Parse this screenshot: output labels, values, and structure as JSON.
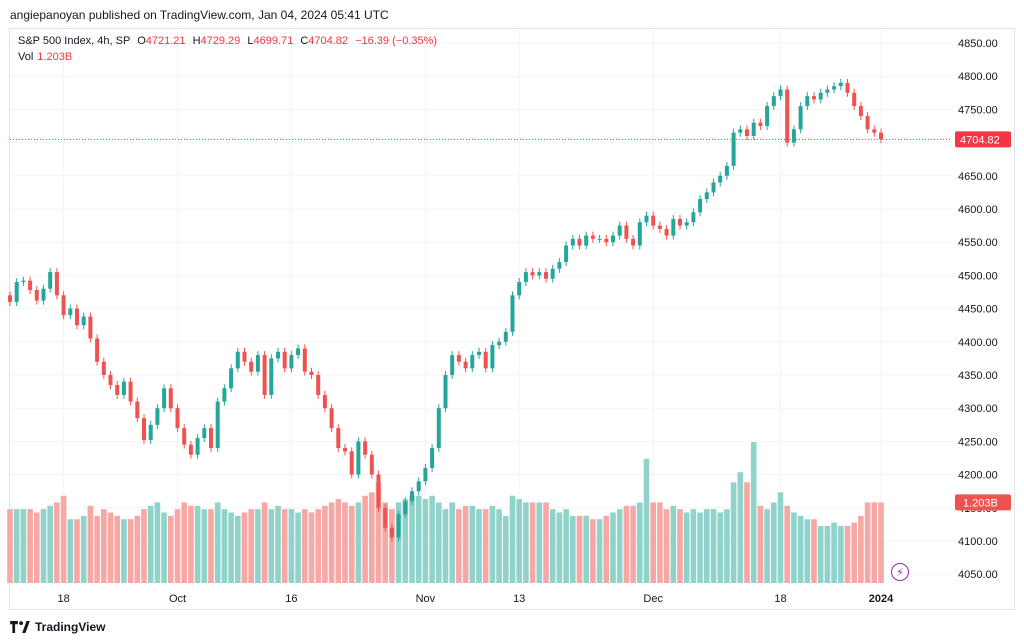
{
  "header": {
    "publisher": "angiepanoyan published on TradingView.com, Jan 04, 2024 05:41 UTC"
  },
  "legend": {
    "symbol": "S&P 500 Index, 4h, SP",
    "o_label": "O",
    "o": "4721.21",
    "h_label": "H",
    "h": "4729.29",
    "l_label": "L",
    "l": "4699.71",
    "c_label": "C",
    "c": "4704.82",
    "change": "−16.39 (−0.35%)",
    "vol_label": "Vol",
    "vol": "1.203B"
  },
  "footer": {
    "brand": "TradingView"
  },
  "colors": {
    "up": "#26a69a",
    "down": "#ef5350",
    "vol_up": "#8fd3cb",
    "vol_down": "#f7a8a5",
    "last_price": "#f23645"
  },
  "chart_data": {
    "type": "candlestick",
    "title": "S&P 500 Index, 4h, SP",
    "ylim": [
      4040,
      4870
    ],
    "y_ticks": [
      "4850.00",
      "4800.00",
      "4750.00",
      "4700.00",
      "4650.00",
      "4600.00",
      "4550.00",
      "4500.00",
      "4450.00",
      "4400.00",
      "4350.00",
      "4300.00",
      "4250.00",
      "4200.00",
      "4150.00",
      "4100.00",
      "4050.00"
    ],
    "x_tick_labels": [
      "18",
      "Oct",
      "16",
      "Nov",
      "13",
      "Dec",
      "18",
      "2024"
    ],
    "x_tick_bar_index": [
      8,
      25,
      42,
      62,
      76,
      96,
      115,
      130
    ],
    "last_price_label": "4704.82",
    "last_volume_label": "1.203B",
    "volume_max_b": 2.1,
    "closes": [
      4460,
      4490,
      4492,
      4478,
      4462,
      4480,
      4505,
      4470,
      4440,
      4450,
      4425,
      4438,
      4405,
      4370,
      4350,
      4335,
      4320,
      4340,
      4310,
      4285,
      4252,
      4275,
      4300,
      4330,
      4300,
      4270,
      4245,
      4230,
      4255,
      4270,
      4240,
      4310,
      4330,
      4360,
      4385,
      4370,
      4355,
      4380,
      4320,
      4375,
      4385,
      4360,
      4380,
      4390,
      4355,
      4350,
      4320,
      4300,
      4270,
      4240,
      4235,
      4200,
      4250,
      4230,
      4200,
      4150,
      4120,
      4105,
      4140,
      4160,
      4175,
      4190,
      4210,
      4240,
      4300,
      4350,
      4380,
      4370,
      4360,
      4380,
      4385,
      4360,
      4395,
      4400,
      4415,
      4470,
      4490,
      4505,
      4500,
      4505,
      4495,
      4510,
      4520,
      4545,
      4555,
      4545,
      4560,
      4555,
      4555,
      4550,
      4560,
      4575,
      4555,
      4545,
      4580,
      4590,
      4575,
      4570,
      4560,
      4585,
      4575,
      4580,
      4595,
      4615,
      4625,
      4640,
      4650,
      4665,
      4715,
      4720,
      4710,
      4730,
      4725,
      4755,
      4770,
      4780,
      4700,
      4720,
      4755,
      4770,
      4765,
      4775,
      4780,
      4785,
      4790,
      4775,
      4755,
      4740,
      4720,
      4715,
      4705
    ],
    "volumes_b": [
      1.1,
      1.1,
      1.1,
      1.1,
      1.05,
      1.1,
      1.15,
      1.2,
      1.3,
      0.95,
      0.95,
      1.0,
      1.15,
      1.0,
      1.1,
      1.05,
      1.0,
      0.95,
      0.95,
      1.0,
      1.1,
      1.15,
      1.2,
      1.05,
      1.0,
      1.1,
      1.2,
      1.15,
      1.15,
      1.1,
      1.1,
      1.2,
      1.1,
      1.05,
      1.0,
      1.05,
      1.1,
      1.1,
      1.2,
      1.1,
      1.15,
      1.1,
      1.1,
      1.05,
      1.1,
      1.05,
      1.1,
      1.15,
      1.2,
      1.25,
      1.2,
      1.15,
      1.2,
      1.3,
      1.35,
      1.5,
      1.2,
      1.1,
      1.2,
      1.25,
      1.3,
      1.3,
      1.25,
      1.3,
      1.2,
      1.1,
      1.2,
      1.1,
      1.15,
      1.15,
      1.1,
      1.1,
      1.15,
      1.1,
      1.0,
      1.3,
      1.25,
      1.2,
      1.2,
      1.2,
      1.2,
      1.1,
      1.05,
      1.1,
      1.0,
      1.0,
      1.0,
      0.95,
      0.95,
      1.0,
      1.05,
      1.1,
      1.15,
      1.15,
      1.2,
      1.85,
      1.2,
      1.2,
      1.1,
      1.15,
      1.1,
      1.05,
      1.1,
      1.05,
      1.1,
      1.1,
      1.05,
      1.1,
      1.5,
      1.65,
      1.5,
      2.1,
      1.15,
      1.1,
      1.2,
      1.35,
      1.15,
      1.05,
      1.0,
      0.95,
      0.95,
      0.85,
      0.85,
      0.9,
      0.85,
      0.85,
      0.9,
      1.0,
      1.2,
      1.2,
      1.2
    ]
  }
}
